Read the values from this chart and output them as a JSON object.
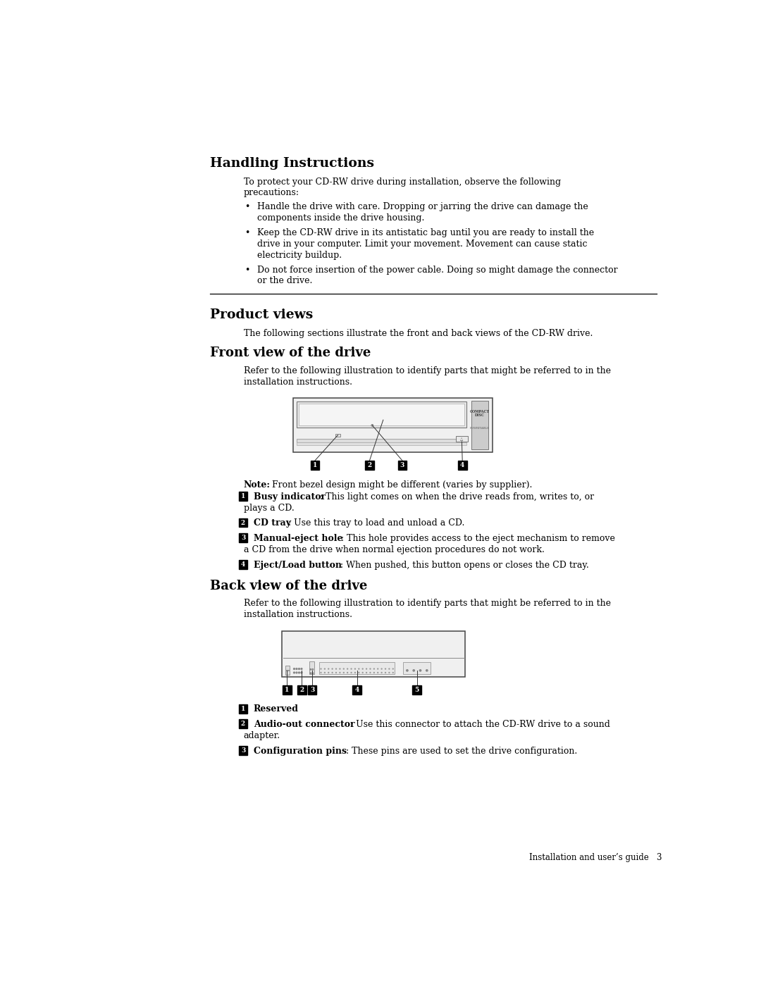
{
  "bg_color": "#ffffff",
  "text_color": "#000000",
  "page_width": 10.8,
  "page_height": 13.97,
  "lm_title": 2.1,
  "lm_body": 2.72,
  "lm_body2": 3.0,
  "section1_title": "Handling Instructions",
  "section1_intro": "To protect your CD-RW drive during installation, observe the following\nprecautions:",
  "section1_bullets": [
    "Handle the drive with care. Dropping or jarring the drive can damage the\ncomponents inside the drive housing.",
    "Keep the CD-RW drive in its antistatic bag until you are ready to install the\ndrive in your computer. Limit your movement. Movement can cause static\nelectricity buildup.",
    "Do not force insertion of the power cable. Doing so might damage the connector\nor the drive."
  ],
  "section2_title": "Product views",
  "section2_intro": "The following sections illustrate the front and back views of the CD-RW drive.",
  "section3_title": "Front view of the drive",
  "section3_intro": "Refer to the following illustration to identify parts that might be referred to in the\ninstallation instructions.",
  "front_note_bold": "Note:",
  "front_note_rest": "  Front bezel design might be different (varies by supplier).",
  "front_items": [
    {
      "num": "1",
      "bold": "Busy indicator",
      "rest": ": This light comes on when the drive reads from, writes to, or\nplays a CD."
    },
    {
      "num": "2",
      "bold": "CD tray",
      "rest": ": Use this tray to load and unload a CD."
    },
    {
      "num": "3",
      "bold": "Manual-eject hole",
      "rest": ": This hole provides access to the eject mechanism to remove\na CD from the drive when normal ejection procedures do not work."
    },
    {
      "num": "4",
      "bold": "Eject/Load button",
      "rest": ": When pushed, this button opens or closes the CD tray."
    }
  ],
  "section4_title": "Back view of the drive",
  "section4_intro": "Refer to the following illustration to identify parts that might be referred to in the\ninstallation instructions.",
  "back_items": [
    {
      "num": "1",
      "bold": "Reserved",
      "rest": ""
    },
    {
      "num": "2",
      "bold": "Audio-out connector",
      "rest": ": Use this connector to attach the CD-RW drive to a sound\nadapter."
    },
    {
      "num": "3",
      "bold": "Configuration pins",
      "rest": ": These pins are used to set the drive configuration."
    }
  ],
  "footer_text": "Installation and user’s guide   3"
}
